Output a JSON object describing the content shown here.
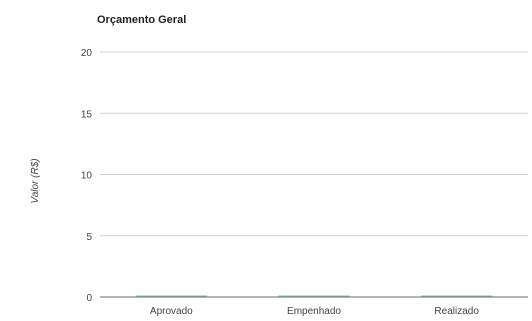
{
  "chart_data": {
    "type": "bar",
    "title": "Orçamento Geral",
    "xlabel": "",
    "ylabel": "Valor (R$)",
    "categories": [
      "Aprovado",
      "Empenhado",
      "Realizado"
    ],
    "values": [
      0,
      0,
      0
    ],
    "ylim": [
      0,
      20
    ],
    "yticks": [
      0,
      5,
      10,
      15,
      20
    ],
    "grid": true,
    "legend": "none",
    "colors": {
      "bar": "#2e8b57"
    }
  }
}
